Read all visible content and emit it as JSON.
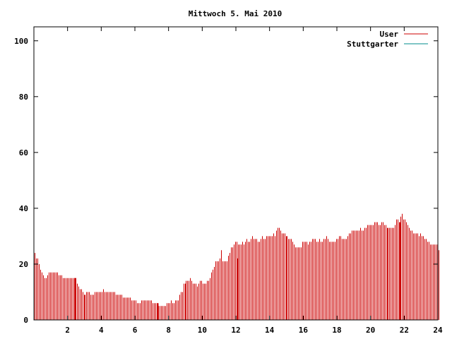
{
  "chart_data": {
    "type": "bar",
    "title": "Mittwoch 5. Mai 2010",
    "xlabel": "",
    "ylabel": "",
    "xlim": [
      0,
      24
    ],
    "ylim": [
      0,
      105
    ],
    "x_ticks": [
      "2",
      "4",
      "6",
      "8",
      "10",
      "12",
      "14",
      "16",
      "18",
      "20",
      "22",
      "24"
    ],
    "y_ticks": [
      "0",
      "20",
      "40",
      "60",
      "80",
      "100"
    ],
    "grid": false,
    "legend_position": "top-right",
    "interval_minutes": 5,
    "series": [
      {
        "name": "User",
        "color": "#cc0000",
        "values": [
          24,
          22,
          22,
          20,
          18,
          17,
          16,
          15,
          15,
          16,
          17,
          17,
          17,
          17,
          17,
          17,
          17,
          16,
          16,
          16,
          15,
          15,
          15,
          15,
          15,
          15,
          15,
          15,
          15,
          15,
          13,
          12,
          11,
          11,
          10,
          9,
          9,
          10,
          10,
          10,
          9,
          9,
          9,
          10,
          10,
          10,
          10,
          10,
          10,
          11,
          10,
          10,
          10,
          10,
          10,
          10,
          10,
          10,
          9,
          9,
          9,
          9,
          9,
          8,
          8,
          8,
          8,
          8,
          8,
          7,
          7,
          7,
          7,
          6,
          6,
          6,
          7,
          7,
          7,
          7,
          7,
          7,
          7,
          7,
          6,
          6,
          6,
          6,
          5,
          5,
          5,
          5,
          5,
          5,
          6,
          6,
          6,
          7,
          6,
          6,
          7,
          7,
          7,
          9,
          10,
          10,
          13,
          13,
          14,
          14,
          14,
          15,
          14,
          13,
          13,
          13,
          12,
          13,
          14,
          14,
          13,
          13,
          13,
          14,
          14,
          15,
          17,
          18,
          19,
          21,
          21,
          21,
          22,
          25,
          21,
          21,
          21,
          21,
          23,
          24,
          26,
          26,
          27,
          28,
          28,
          27,
          27,
          27,
          28,
          27,
          28,
          29,
          28,
          28,
          29,
          30,
          29,
          29,
          29,
          28,
          28,
          29,
          30,
          29,
          29,
          30,
          30,
          30,
          30,
          30,
          31,
          30,
          32,
          33,
          33,
          32,
          31,
          31,
          31,
          30,
          30,
          29,
          29,
          29,
          28,
          27,
          26,
          26,
          26,
          26,
          26,
          28,
          28,
          28,
          28,
          27,
          28,
          28,
          29,
          29,
          29,
          28,
          28,
          29,
          28,
          28,
          29,
          29,
          30,
          29,
          28,
          28,
          28,
          28,
          28,
          29,
          29,
          30,
          30,
          29,
          29,
          29,
          29,
          30,
          31,
          31,
          32,
          32,
          32,
          32,
          32,
          32,
          33,
          32,
          32,
          33,
          33,
          34,
          34,
          34,
          34,
          34,
          35,
          35,
          35,
          34,
          34,
          35,
          35,
          34,
          34,
          33,
          33,
          33,
          33,
          33,
          33,
          34,
          36,
          36,
          35,
          37,
          38,
          36,
          36,
          35,
          34,
          33,
          32,
          32,
          31,
          31,
          31,
          31,
          30,
          31,
          30,
          30,
          29,
          29,
          28,
          28,
          27,
          27,
          27,
          27,
          27,
          27,
          25
        ],
        "spikes": [
          {
            "x": 2.42,
            "y": 15
          },
          {
            "x": 7.33,
            "y": 6
          },
          {
            "x": 12.08,
            "y": 22
          },
          {
            "x": 21.75,
            "y": 35
          }
        ]
      },
      {
        "name": "Stuttgarter",
        "color": "#008b8b",
        "values": []
      }
    ]
  }
}
